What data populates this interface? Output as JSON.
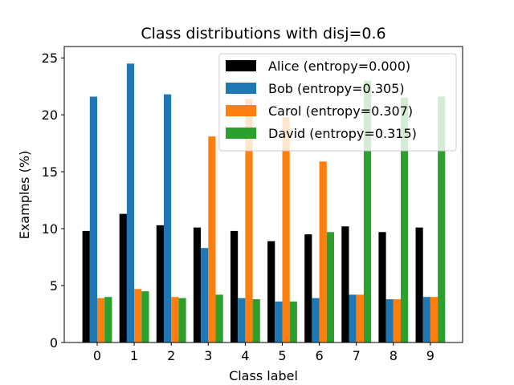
{
  "chart_data": {
    "type": "bar",
    "title": "Class distributions with disj=0.6",
    "xlabel": "Class label",
    "ylabel": "Examples (%)",
    "categories": [
      "0",
      "1",
      "2",
      "3",
      "4",
      "5",
      "6",
      "7",
      "8",
      "9"
    ],
    "ylim": [
      0,
      26
    ],
    "yticks": [
      "0",
      "5",
      "10",
      "15",
      "20",
      "25"
    ],
    "grid": false,
    "legend_position": "top-right",
    "series": [
      {
        "name": "Alice (entropy=0.000)",
        "color": "#000000",
        "values": [
          9.8,
          11.3,
          10.3,
          10.1,
          9.8,
          8.9,
          9.5,
          10.2,
          9.7,
          10.1
        ]
      },
      {
        "name": "Bob (entropy=0.305)",
        "color": "#1f77b4",
        "values": [
          21.6,
          24.5,
          21.8,
          8.3,
          3.9,
          3.6,
          3.9,
          4.2,
          3.8,
          4.0
        ]
      },
      {
        "name": "Carol (entropy=0.307)",
        "color": "#ff7f0e",
        "values": [
          3.9,
          4.7,
          4.0,
          18.1,
          21.4,
          19.8,
          15.9,
          4.2,
          3.8,
          4.0
        ]
      },
      {
        "name": "David (entropy=0.315)",
        "color": "#2ca02c",
        "values": [
          4.0,
          4.5,
          3.9,
          4.2,
          3.8,
          3.6,
          9.7,
          23.0,
          21.5,
          21.6
        ]
      }
    ]
  }
}
